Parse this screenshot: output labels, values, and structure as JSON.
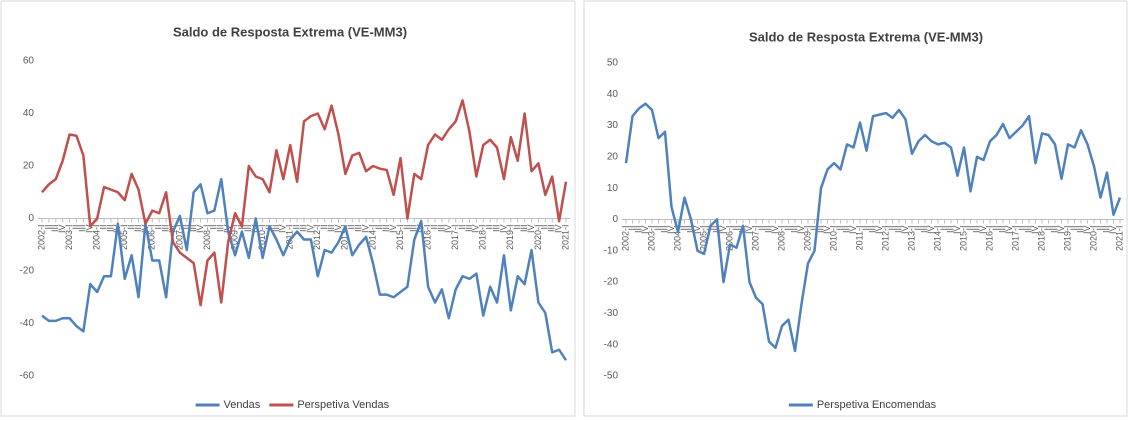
{
  "chart_data": [
    {
      "type": "line",
      "title": "Saldo de Resposta Extrema (VE-MM3)",
      "categories": [
        "2002-I",
        "II",
        "III",
        "IV",
        "2003-I",
        "II",
        "III",
        "IV",
        "2004-I",
        "II",
        "III",
        "IV",
        "2005-I",
        "II",
        "III",
        "IV",
        "2006-I",
        "II",
        "III",
        "IV",
        "2007-I",
        "II",
        "III",
        "IV",
        "2008-I",
        "II",
        "III",
        "IV",
        "2009-I",
        "II",
        "III",
        "IV",
        "2010-I",
        "II",
        "III",
        "IV",
        "2011-I",
        "II",
        "III",
        "IV",
        "2012-I",
        "II",
        "III",
        "IV",
        "2013-I",
        "II",
        "III",
        "IV",
        "2014-I",
        "II",
        "III",
        "IV",
        "2015-I",
        "II",
        "III",
        "IV",
        "2016-I",
        "II",
        "III",
        "IV",
        "2017-I",
        "II",
        "III",
        "IV",
        "2018-I",
        "II",
        "III",
        "IV",
        "2019-I",
        "II",
        "III",
        "IV",
        "2020-I",
        "II",
        "III",
        "IV",
        "2021-I"
      ],
      "series": [
        {
          "name": "Vendas",
          "color": "#4f81bd",
          "values": [
            -37,
            -39,
            -39,
            -38,
            -38,
            -41,
            -43,
            -25,
            -28,
            -22,
            -22,
            -2,
            -23,
            -14,
            -30,
            -2,
            -16,
            -16,
            -30,
            -5,
            1,
            -12,
            10,
            13,
            2,
            3,
            15,
            -5,
            -14,
            -5,
            -15,
            0,
            -15,
            -3,
            -8,
            -14,
            -8,
            -5,
            -8,
            -8,
            -22,
            -12,
            -13,
            -9,
            -3,
            -14,
            -10,
            -7,
            -17,
            -29,
            -29,
            -30,
            -28,
            -26,
            -8,
            -1,
            -26,
            -32,
            -27,
            -38,
            -27,
            -22,
            -23,
            -21,
            -37,
            -26,
            -32,
            -14,
            -35,
            -22,
            -25,
            -12,
            -32,
            -36,
            -51,
            -50,
            -54
          ]
        },
        {
          "name": "Perspetiva Vendas",
          "color": "#c0504d",
          "values": [
            10,
            13,
            15,
            22,
            32,
            31.5,
            24,
            -3,
            0,
            12,
            11,
            10,
            7,
            17,
            11,
            -2,
            3,
            2,
            10,
            -9,
            -13,
            -15,
            -17,
            -33,
            -16,
            -13,
            -32,
            -9,
            2,
            -3,
            20,
            16,
            15,
            10,
            26,
            15,
            28,
            14,
            37,
            39,
            40,
            34,
            43,
            32,
            17,
            24,
            25,
            18,
            20,
            19,
            18.5,
            9,
            23,
            0,
            17,
            15,
            28,
            32,
            30,
            34,
            37,
            45,
            33,
            16,
            28,
            30,
            27,
            15,
            31,
            22,
            40,
            18,
            21,
            9,
            16,
            -1,
            14
          ]
        }
      ],
      "ylim": [
        -60,
        60
      ],
      "yticks": [
        -60,
        -40,
        -20,
        0,
        20,
        40,
        60
      ],
      "grid": false,
      "legend": "bottom"
    },
    {
      "type": "line",
      "title": "Saldo de Resposta Extrema (VE-MM3)",
      "categories": [
        "2002-I",
        "II",
        "III",
        "IV",
        "2003-I",
        "II",
        "III",
        "IV",
        "2004-I",
        "II",
        "III",
        "IV",
        "2005-I",
        "II",
        "III",
        "IV",
        "2006-I",
        "II",
        "III",
        "IV",
        "2007-I",
        "II",
        "III",
        "IV",
        "2008-I",
        "II",
        "III",
        "IV",
        "2009-I",
        "II",
        "III",
        "IV",
        "2010-I",
        "II",
        "III",
        "IV",
        "2011-I",
        "II",
        "III",
        "IV",
        "2012-I",
        "II",
        "III",
        "IV",
        "2013-I",
        "II",
        "III",
        "IV",
        "2014-I",
        "II",
        "III",
        "IV",
        "2015-I",
        "II",
        "III",
        "IV",
        "2016-I",
        "II",
        "III",
        "IV",
        "2017-I",
        "II",
        "III",
        "IV",
        "2018-I",
        "II",
        "III",
        "IV",
        "2019-I",
        "II",
        "III",
        "IV",
        "2020-I",
        "II",
        "III",
        "IV",
        "2021-I"
      ],
      "series": [
        {
          "name": "Perspetiva Encomendas",
          "color": "#4f81bd",
          "values": [
            18,
            33,
            35.5,
            37,
            35,
            26,
            28,
            4,
            -4,
            7,
            0,
            -10,
            -11,
            -2,
            0,
            -20,
            -8,
            -9,
            -2,
            -20,
            -25,
            -27,
            -39,
            -41,
            -34,
            -32,
            -42,
            -27,
            -14,
            -10,
            10,
            16,
            18,
            16,
            24,
            23,
            31,
            22,
            33,
            33.5,
            34,
            32.5,
            35,
            32,
            21,
            25,
            27,
            25,
            24,
            24.5,
            23,
            14,
            23,
            9,
            20,
            19,
            25,
            27,
            30.5,
            26,
            28,
            30,
            33,
            18,
            27.5,
            27,
            24,
            13,
            24,
            23,
            28.5,
            24,
            17,
            7,
            15,
            1.5,
            7
          ]
        }
      ],
      "ylim": [
        -50,
        50
      ],
      "yticks": [
        -50,
        -40,
        -30,
        -20,
        -10,
        0,
        10,
        20,
        30,
        40,
        50
      ],
      "grid": false,
      "legend": "bottom"
    }
  ]
}
